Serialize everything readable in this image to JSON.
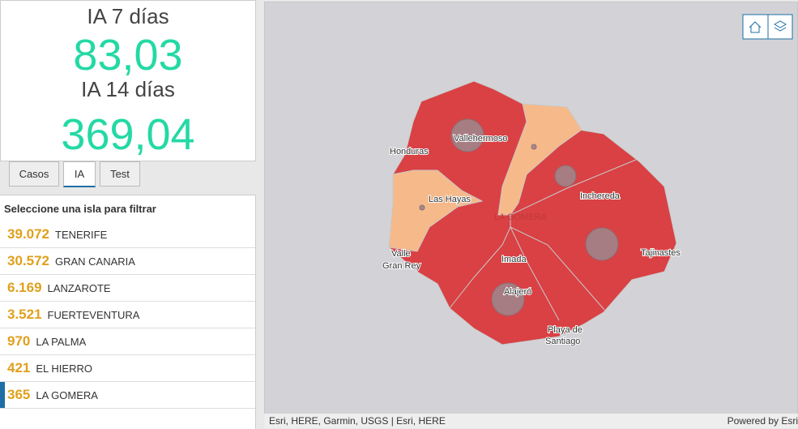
{
  "indicators": {
    "ia7_label": "IA 7 días",
    "ia7_value": "83,03",
    "ia14_label": "IA 14 días",
    "ia14_value": "369,04"
  },
  "tabs": [
    "Casos",
    "IA",
    "Test"
  ],
  "list": {
    "title": "Seleccione una isla para filtrar",
    "items": [
      {
        "count": "39.072",
        "name": "TENERIFE"
      },
      {
        "count": "30.572",
        "name": "GRAN CANARIA"
      },
      {
        "count": "6.169",
        "name": "LANZAROTE"
      },
      {
        "count": "3.521",
        "name": "FUERTEVENTURA"
      },
      {
        "count": "970",
        "name": "LA PALMA"
      },
      {
        "count": "421",
        "name": "EL HIERRO"
      },
      {
        "count": "365",
        "name": "LA GOMERA"
      }
    ]
  },
  "map": {
    "labels": [
      "Honduras",
      "Vallehermoso",
      "Las Hayas",
      "Inchereda",
      "LA GOMERA",
      "Valle",
      "Gran Rey",
      "Imada",
      "Tajinastes",
      "Alajeró",
      "Playa de",
      "Santiago"
    ],
    "attribution": "Esri, HERE, Garmin, USGS | Esri, HERE",
    "powered": "Powered by Esri"
  }
}
